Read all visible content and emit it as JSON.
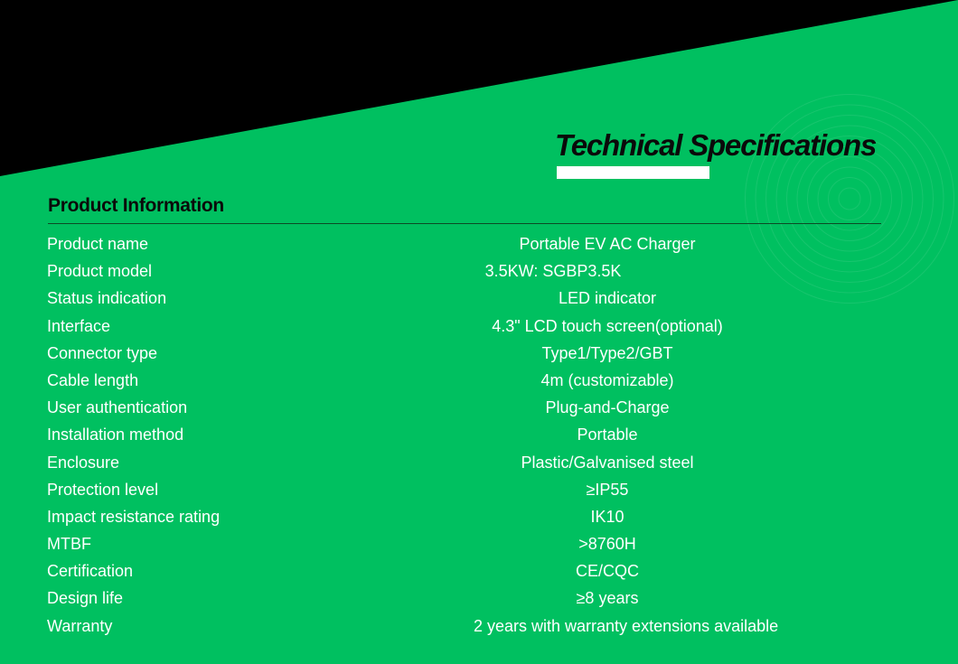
{
  "colors": {
    "background": "#00c060",
    "accent_black": "#000000",
    "title_bar": "#ffffff"
  },
  "title": "Technical Specifications",
  "section_title": "Product Information",
  "specs": [
    {
      "label": "Product name",
      "value": "Portable EV AC Charger"
    },
    {
      "label": "Product model",
      "value": "3.5KW: SGBP3.5K"
    },
    {
      "label": "Status indication",
      "value": "LED indicator"
    },
    {
      "label": "Interface",
      "value": "4.3\" LCD touch screen(optional)"
    },
    {
      "label": "Connector type",
      "value": "Type1/Type2/GBT"
    },
    {
      "label": "Cable length",
      "value": "4m (customizable)"
    },
    {
      "label": "User authentication",
      "value": "Plug-and-Charge"
    },
    {
      "label": "Installation method",
      "value": "Portable"
    },
    {
      "label": "Enclosure",
      "value": "Plastic/Galvanised steel"
    },
    {
      "label": "Protection level",
      "value": "≥IP55"
    },
    {
      "label": "Impact resistance rating",
      "value": "IK10"
    },
    {
      "label": "MTBF",
      "value": ">8760H"
    },
    {
      "label": "Certification",
      "value": "CE/CQC"
    },
    {
      "label": "Design life",
      "value": "≥8 years"
    },
    {
      "label": "Warranty",
      "value": "2 years with warranty extensions available"
    }
  ]
}
